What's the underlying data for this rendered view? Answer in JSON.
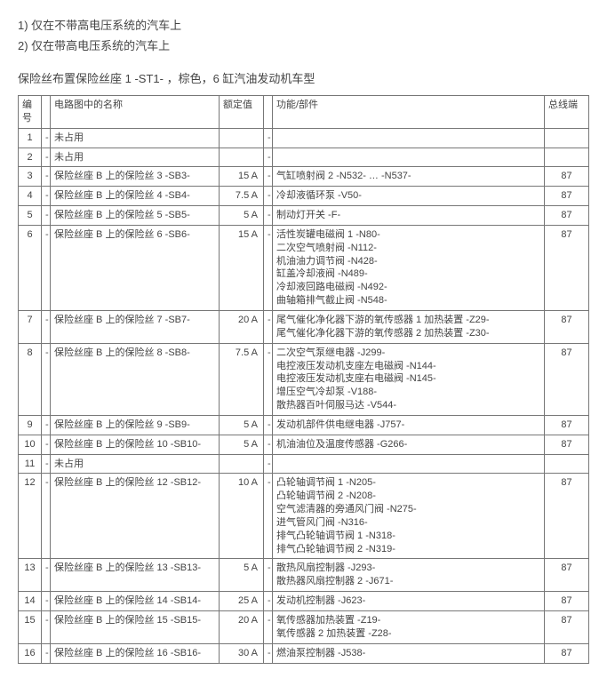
{
  "notes": {
    "line1": "1) 仅在不带高电压系统的汽车上",
    "line2": "2) 仅在带高电压系统的汽车上"
  },
  "section_title": "保险丝布置保险丝座 1 -ST1-  ，棕色，6 缸汽油发动机车型",
  "table": {
    "headers": {
      "num": "编号",
      "name": "电路图中的名称",
      "rating": "额定值",
      "function": "功能/部件",
      "terminal": "总线端"
    },
    "rows": [
      {
        "num": "1",
        "name": "未占用",
        "rating": "",
        "function": "",
        "terminal": ""
      },
      {
        "num": "2",
        "name": "未占用",
        "rating": "",
        "function": "",
        "terminal": ""
      },
      {
        "num": "3",
        "name": "保险丝座 B 上的保险丝 3 -SB3-",
        "rating": "15 A",
        "function": "气缸喷射阀 2 -N532- … -N537-",
        "terminal": "87"
      },
      {
        "num": "4",
        "name": "保险丝座 B 上的保险丝 4 -SB4-",
        "rating": "7.5 A",
        "function": "冷却液循环泵 -V50-",
        "terminal": "87"
      },
      {
        "num": "5",
        "name": "保险丝座 B 上的保险丝 5 -SB5-",
        "rating": "5 A",
        "function": "制动灯开关 -F-",
        "terminal": "87"
      },
      {
        "num": "6",
        "name": "保险丝座 B 上的保险丝 6 -SB6-",
        "rating": "15 A",
        "function": "活性炭罐电磁阀 1 -N80-\n二次空气喷射阀 -N112-\n机油油力调节阀 -N428-\n缸盖冷却液阀 -N489-\n冷却液回路电磁阀 -N492-\n曲轴箱排气截止阀 -N548-",
        "terminal": "87"
      },
      {
        "num": "7",
        "name": "保险丝座 B 上的保险丝 7 -SB7-",
        "rating": "20 A",
        "function": "尾气催化净化器下游的氧传感器 1 加热装置 -Z29-\n尾气催化净化器下游的氧传感器 2 加热装置 -Z30-",
        "terminal": "87"
      },
      {
        "num": "8",
        "name": "保险丝座 B 上的保险丝 8 -SB8-",
        "rating": "7.5 A",
        "function": "二次空气泵继电器 -J299-\n电控液压发动机支座左电磁阀 -N144-\n电控液压发动机支座右电磁阀 -N145-\n增压空气冷却泵 -V188-\n散热器百叶伺服马达 -V544-",
        "terminal": "87"
      },
      {
        "num": "9",
        "name": "保险丝座 B 上的保险丝 9 -SB9-",
        "rating": "5 A",
        "function": "发动机部件供电继电器 -J757-",
        "terminal": "87"
      },
      {
        "num": "10",
        "name": "保险丝座 B 上的保险丝 10 -SB10-",
        "rating": "5 A",
        "function": "机油油位及温度传感器 -G266-",
        "terminal": "87"
      },
      {
        "num": "11",
        "name": "未占用",
        "rating": "",
        "function": "",
        "terminal": ""
      },
      {
        "num": "12",
        "name": "保险丝座 B 上的保险丝 12 -SB12-",
        "rating": "10 A",
        "function": "凸轮轴调节阀 1 -N205-\n凸轮轴调节阀 2 -N208-\n空气滤清器的旁通风门阀 -N275-\n进气管风门阀 -N316-\n排气凸轮轴调节阀 1 -N318-\n排气凸轮轴调节阀 2 -N319-",
        "terminal": "87"
      },
      {
        "num": "13",
        "name": "保险丝座 B 上的保险丝 13 -SB13-",
        "rating": "5 A",
        "function": "散热风扇控制器 -J293-\n散热器风扇控制器 2 -J671-",
        "terminal": "87"
      },
      {
        "num": "14",
        "name": "保险丝座 B 上的保险丝 14 -SB14-",
        "rating": "25 A",
        "function": "发动机控制器 -J623-",
        "terminal": "87"
      },
      {
        "num": "15",
        "name": "保险丝座 B 上的保险丝 15 -SB15-",
        "rating": "20 A",
        "function": "氧传感器加热装置 -Z19-\n氧传感器 2 加热装置 -Z28-",
        "terminal": "87"
      },
      {
        "num": "16",
        "name": "保险丝座 B 上的保险丝 16 -SB16-",
        "rating": "30 A",
        "function": "燃油泵控制器 -J538-",
        "terminal": "87"
      }
    ]
  }
}
